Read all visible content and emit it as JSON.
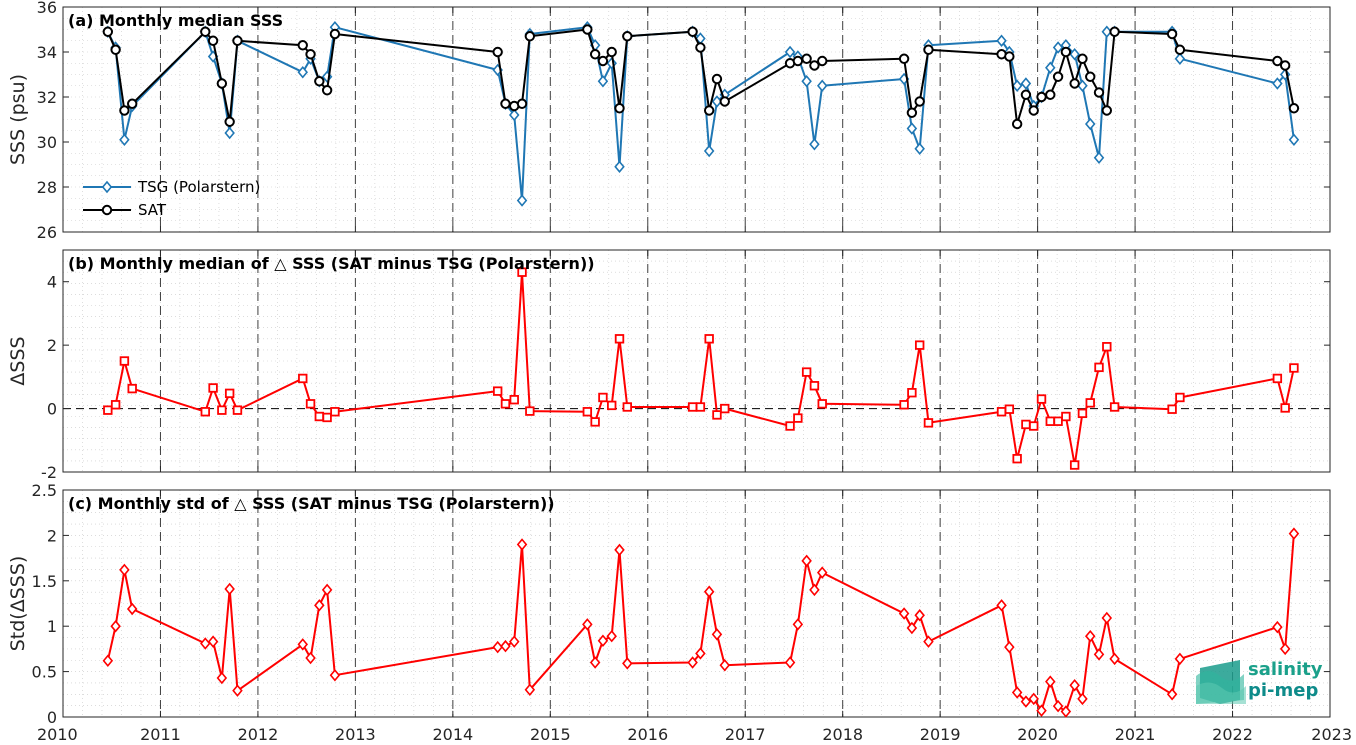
{
  "colors": {
    "tsg": "#1f77b4",
    "sat": "#000000",
    "delta": "#ff0000",
    "grid": "#c8c8c8",
    "vline": "#404040"
  },
  "x_axis": {
    "range": [
      2010,
      2023
    ],
    "ticks": [
      "2010",
      "2011",
      "2012",
      "2013",
      "2014",
      "2015",
      "2016",
      "2017",
      "2018",
      "2019",
      "2020",
      "2021",
      "2022",
      "2023"
    ]
  },
  "logo": {
    "line1": "salinity",
    "line2": "pi-mep",
    "icon": "wave-logo-icon"
  },
  "chart_data": [
    {
      "type": "line",
      "title": "(a) Monthly median SSS",
      "ylabel": "SSS (psu)",
      "ylim": [
        26,
        36
      ],
      "yticks": [
        "26",
        "28",
        "30",
        "32",
        "34",
        "36"
      ],
      "legend_position": "bottom-left",
      "series": [
        {
          "name": "TSG (Polarstern)",
          "marker": "diamond",
          "x": [
            2010.46,
            2010.54,
            2010.63,
            2010.71,
            2011.46,
            2011.54,
            2011.63,
            2011.71,
            2011.79,
            2012.46,
            2012.54,
            2012.63,
            2012.71,
            2012.79,
            2014.46,
            2014.54,
            2014.63,
            2014.71,
            2014.79,
            2015.38,
            2015.46,
            2015.54,
            2015.63,
            2015.71,
            2015.79,
            2016.46,
            2016.54,
            2016.63,
            2016.71,
            2016.79,
            2017.46,
            2017.54,
            2017.63,
            2017.71,
            2017.79,
            2018.63,
            2018.71,
            2018.79,
            2018.88,
            2019.63,
            2019.71,
            2019.79,
            2019.88,
            2019.96,
            2020.04,
            2020.13,
            2020.21,
            2020.29,
            2020.38,
            2020.46,
            2020.54,
            2020.63,
            2020.71,
            2020.79,
            2021.38,
            2021.46,
            2022.46,
            2022.54,
            2022.63
          ],
          "y": [
            34.9,
            34.2,
            30.1,
            31.6,
            34.9,
            33.8,
            32.6,
            30.4,
            34.5,
            33.1,
            33.7,
            32.7,
            32.9,
            35.1,
            33.2,
            31.7,
            31.2,
            27.4,
            34.8,
            35.1,
            34.3,
            32.7,
            33.5,
            28.9,
            34.7,
            34.9,
            34.6,
            29.6,
            31.8,
            32.1,
            34.0,
            33.8,
            32.7,
            29.9,
            32.5,
            32.8,
            30.6,
            29.7,
            34.3,
            34.5,
            34.0,
            32.5,
            32.6,
            31.6,
            32.0,
            33.3,
            34.2,
            34.3,
            33.9,
            32.5,
            30.8,
            29.3,
            34.9,
            34.9,
            34.9,
            33.7,
            32.6,
            33.0,
            30.1
          ]
        },
        {
          "name": "SAT",
          "marker": "circle",
          "x": [
            2010.46,
            2010.54,
            2010.63,
            2010.71,
            2011.46,
            2011.54,
            2011.63,
            2011.71,
            2011.79,
            2012.46,
            2012.54,
            2012.63,
            2012.71,
            2012.79,
            2014.46,
            2014.54,
            2014.63,
            2014.71,
            2014.79,
            2015.38,
            2015.46,
            2015.54,
            2015.63,
            2015.71,
            2015.79,
            2016.46,
            2016.54,
            2016.63,
            2016.71,
            2016.79,
            2017.46,
            2017.54,
            2017.63,
            2017.71,
            2017.79,
            2018.63,
            2018.71,
            2018.79,
            2018.88,
            2019.63,
            2019.71,
            2019.79,
            2019.88,
            2019.96,
            2020.04,
            2020.13,
            2020.21,
            2020.29,
            2020.38,
            2020.46,
            2020.54,
            2020.63,
            2020.71,
            2020.79,
            2021.38,
            2021.46,
            2022.46,
            2022.54,
            2022.63
          ],
          "y": [
            34.9,
            34.1,
            31.4,
            31.7,
            34.9,
            34.5,
            32.6,
            30.9,
            34.5,
            34.3,
            33.9,
            32.7,
            32.3,
            34.8,
            34.0,
            31.7,
            31.6,
            31.7,
            34.7,
            35.0,
            33.9,
            33.6,
            34.0,
            31.5,
            34.7,
            34.9,
            34.2,
            31.4,
            32.8,
            31.8,
            33.5,
            33.6,
            33.7,
            33.4,
            33.6,
            33.7,
            31.3,
            31.8,
            34.1,
            33.9,
            33.8,
            30.8,
            32.1,
            31.4,
            32.0,
            32.1,
            32.9,
            34.0,
            32.6,
            33.7,
            32.9,
            32.2,
            31.4,
            34.9,
            34.8,
            34.1,
            33.6,
            33.4,
            31.5
          ]
        }
      ]
    },
    {
      "type": "line",
      "title": "(b) Monthly median of △ SSS (SAT minus TSG (Polarstern))",
      "ylabel": "ΔSSS",
      "ylim": [
        -2,
        5
      ],
      "yticks": [
        "-2",
        "0",
        "2",
        "4"
      ],
      "zero_line": "dashed",
      "series": [
        {
          "marker": "square",
          "x": [
            2010.46,
            2010.54,
            2010.63,
            2010.71,
            2011.46,
            2011.54,
            2011.63,
            2011.71,
            2011.79,
            2012.46,
            2012.54,
            2012.63,
            2012.71,
            2012.79,
            2014.46,
            2014.54,
            2014.63,
            2014.71,
            2014.79,
            2015.38,
            2015.46,
            2015.54,
            2015.63,
            2015.71,
            2015.79,
            2016.46,
            2016.54,
            2016.63,
            2016.71,
            2016.79,
            2017.46,
            2017.54,
            2017.63,
            2017.71,
            2017.79,
            2018.63,
            2018.71,
            2018.79,
            2018.88,
            2019.63,
            2019.71,
            2019.79,
            2019.88,
            2019.96,
            2020.04,
            2020.13,
            2020.21,
            2020.29,
            2020.38,
            2020.46,
            2020.54,
            2020.63,
            2020.71,
            2020.79,
            2021.38,
            2021.46,
            2022.46,
            2022.54,
            2022.63
          ],
          "y": [
            -0.05,
            0.12,
            1.5,
            0.63,
            -0.1,
            0.65,
            -0.05,
            0.48,
            -0.05,
            0.95,
            0.15,
            -0.25,
            -0.28,
            -0.1,
            0.55,
            0.15,
            0.28,
            4.3,
            -0.08,
            -0.1,
            -0.42,
            0.35,
            0.1,
            2.2,
            0.05,
            0.05,
            0.05,
            2.2,
            -0.2,
            0.0,
            -0.55,
            -0.3,
            1.15,
            0.72,
            0.15,
            0.12,
            0.5,
            2.0,
            -0.45,
            -0.1,
            -0.02,
            -1.58,
            -0.5,
            -0.55,
            0.3,
            -0.4,
            -0.4,
            -0.25,
            -1.78,
            -0.15,
            0.18,
            1.3,
            1.95,
            0.05,
            -0.02,
            0.35,
            0.95,
            0.02,
            1.28
          ]
        }
      ]
    },
    {
      "type": "line",
      "title": "(c) Monthly std of △ SSS (SAT minus TSG (Polarstern))",
      "ylabel": "Std(ΔSSS)",
      "ylim": [
        0,
        2.5
      ],
      "yticks": [
        "0",
        "0.5",
        "1",
        "1.5",
        "2",
        "2.5"
      ],
      "series": [
        {
          "marker": "diamond",
          "x": [
            2010.46,
            2010.54,
            2010.63,
            2010.71,
            2011.46,
            2011.54,
            2011.63,
            2011.71,
            2011.79,
            2012.46,
            2012.54,
            2012.63,
            2012.71,
            2012.79,
            2014.46,
            2014.54,
            2014.63,
            2014.71,
            2014.79,
            2015.38,
            2015.46,
            2015.54,
            2015.63,
            2015.71,
            2015.79,
            2016.46,
            2016.54,
            2016.63,
            2016.71,
            2016.79,
            2017.46,
            2017.54,
            2017.63,
            2017.71,
            2017.79,
            2018.63,
            2018.71,
            2018.79,
            2018.88,
            2019.63,
            2019.71,
            2019.79,
            2019.88,
            2019.96,
            2020.04,
            2020.13,
            2020.21,
            2020.29,
            2020.38,
            2020.46,
            2020.54,
            2020.63,
            2020.71,
            2020.79,
            2021.38,
            2021.46,
            2022.46,
            2022.54,
            2022.63
          ],
          "y": [
            0.62,
            1.0,
            1.62,
            1.19,
            0.81,
            0.83,
            0.43,
            1.41,
            0.29,
            0.8,
            0.65,
            1.23,
            1.4,
            0.46,
            0.77,
            0.78,
            0.83,
            1.9,
            0.3,
            1.02,
            0.6,
            0.84,
            0.89,
            1.84,
            0.59,
            0.6,
            0.7,
            1.38,
            0.91,
            0.57,
            0.6,
            1.02,
            1.72,
            1.4,
            1.59,
            1.14,
            0.98,
            1.12,
            0.83,
            1.23,
            0.77,
            0.27,
            0.17,
            0.2,
            0.07,
            0.39,
            0.12,
            0.06,
            0.35,
            0.2,
            0.89,
            0.69,
            1.09,
            0.64,
            0.25,
            0.64,
            0.99,
            0.75,
            2.02
          ]
        }
      ]
    }
  ]
}
